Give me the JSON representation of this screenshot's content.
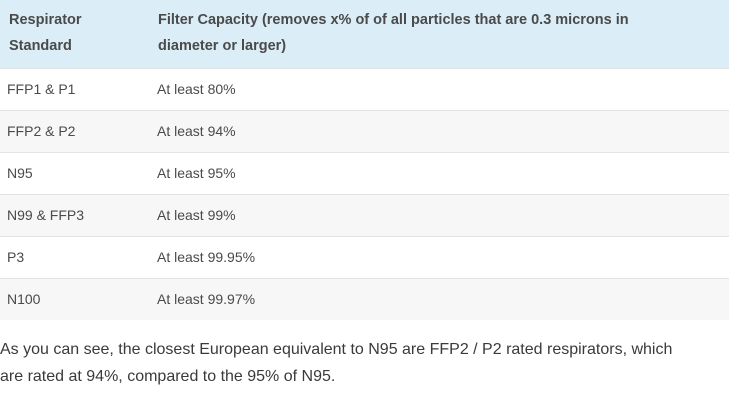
{
  "table": {
    "headers": [
      "Respirator Standard",
      "Filter Capacity (removes x% of of all particles that are 0.3 microns in diameter or larger)"
    ],
    "header_lines": [
      [
        "Respirator",
        "Standard"
      ],
      [
        "Filter Capacity (removes x% of of all particles that are 0.3 microns in",
        "diameter or larger)"
      ]
    ],
    "rows": [
      [
        "FFP1 & P1",
        "At least 80%"
      ],
      [
        "FFP2 & P2",
        "At least 94%"
      ],
      [
        "N95",
        "At least 95%"
      ],
      [
        "N99 & FFP3",
        "At least 99%"
      ],
      [
        "P3",
        "At least 99.95%"
      ],
      [
        "N100",
        "At least 99.97%"
      ]
    ],
    "colors": {
      "header_bg": "#dbeef7",
      "row_alt_bg": "#f7f7f7",
      "text": "#4a4a4a"
    }
  },
  "paragraph": {
    "line1": "As you can see, the closest European equivalent to N95 are FFP2 / P2 rated respirators, which",
    "line2": "are rated at 94%, compared to the 95% of N95."
  }
}
